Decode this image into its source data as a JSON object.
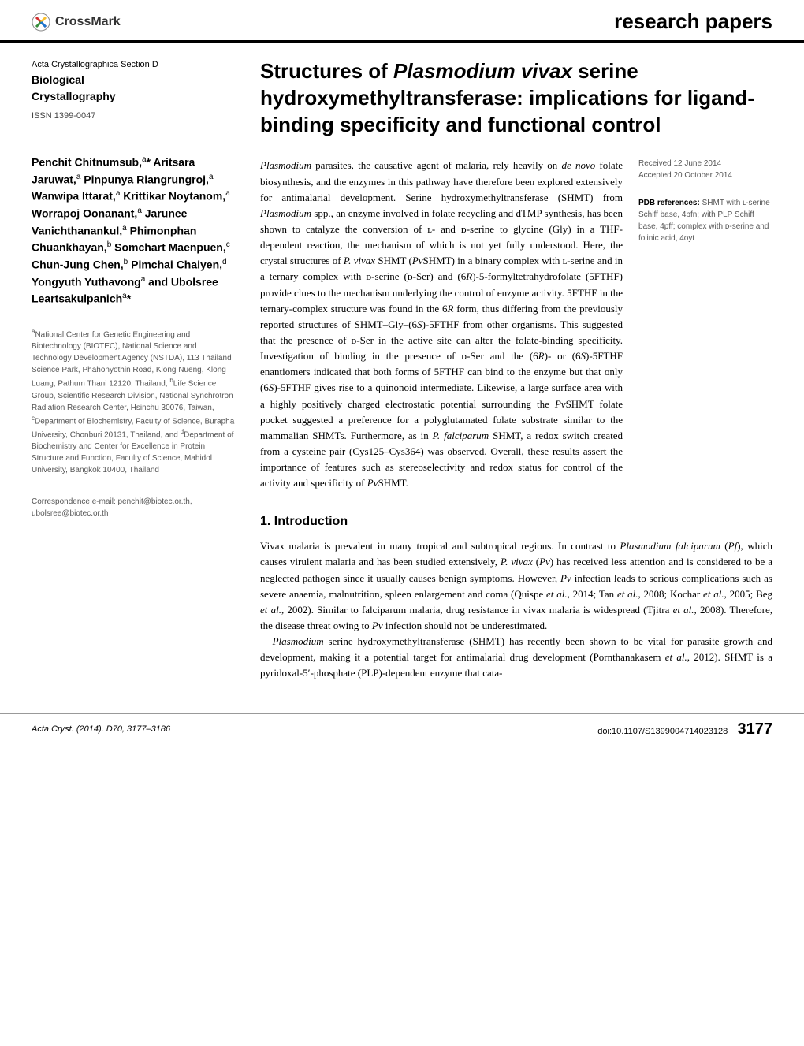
{
  "header": {
    "crossmark": "CrossMark",
    "section_label": "research papers"
  },
  "journal": {
    "line1": "Acta Crystallographica Section D",
    "line2": "Biological",
    "line3": "Crystallography",
    "issn": "ISSN 1399-0047"
  },
  "title": {
    "pre": "Structures of ",
    "italic": "Plasmodium vivax",
    "post": " serine hydroxymethyltransferase: implications for ligand-binding specificity and functional control"
  },
  "authors_html": "Penchit Chitnumsub,<sup>a</sup>* Aritsara Jaruwat,<sup>a</sup> Pinpunya Riangrungroj,<sup>a</sup> Wanwipa Ittarat,<sup>a</sup> Krittikar Noytanom,<sup>a</sup> Worrapoj Oonanant,<sup>a</sup> Jarunee Vanichthanankul,<sup>a</sup> Phimonphan Chuankhayan,<sup>b</sup> Somchart Maenpuen,<sup>c</sup> Chun-Jung Chen,<sup>b</sup> Pimchai Chaiyen,<sup>d</sup> Yongyuth Yuthavong<sup>a</sup> and Ubolsree Leartsakulpanich<sup>a</sup>*",
  "affiliations_html": "<sup>a</sup>National Center for Genetic Engineering and Biotechnology (BIOTEC), National Science and Technology Development Agency (NSTDA), 113 Thailand Science Park, Phahonyothin Road, Klong Nueng, Klong Luang, Pathum Thani 12120, Thailand, <sup>b</sup>Life Science Group, Scientific Research Division, National Synchrotron Radiation Research Center, Hsinchu 30076, Taiwan, <sup>c</sup>Department of Biochemistry, Faculty of Science, Burapha University, Chonburi 20131, Thailand, and <sup>d</sup>Department of Biochemistry and Center for Excellence in Protein Structure and Function, Faculty of Science, Mahidol University, Bangkok 10400, Thailand",
  "correspondence": "Correspondence e-mail: penchit@biotec.or.th, ubolsree@biotec.or.th",
  "dates": {
    "received": "Received 12 June 2014",
    "accepted": "Accepted 20 October 2014"
  },
  "pdb": {
    "header": "PDB references:",
    "text": " SHMT with ʟ-serine Schiff base, 4pfn; with PLP Schiff base, 4pff; complex with ᴅ-serine and folinic acid, 4oyt"
  },
  "abstract_html": "<span class=\"italic\">Plasmodium</span> parasites, the causative agent of malaria, rely heavily on <span class=\"italic\">de novo</span> folate biosynthesis, and the enzymes in this pathway have therefore been explored extensively for antimalarial development. Serine hydroxymethyltransferase (SHMT) from <span class=\"italic\">Plasmodium</span> spp., an enzyme involved in folate recycling and dTMP synthesis, has been shown to catalyze the conversion of ʟ- and ᴅ-serine to glycine (Gly) in a THF-dependent reaction, the mechanism of which is not yet fully understood. Here, the crystal structures of <span class=\"italic\">P. vivax</span> SHMT (<span class=\"italic\">Pv</span>SHMT) in a binary complex with ʟ-serine and in a ternary complex with ᴅ-serine (ᴅ-Ser) and (6<span class=\"italic\">R</span>)-5-formyltetrahydrofolate (5FTHF) provide clues to the mechanism underlying the control of enzyme activity. 5FTHF in the ternary-complex structure was found in the 6<span class=\"italic\">R</span> form, thus differing from the previously reported structures of SHMT–Gly–(6<span class=\"italic\">S</span>)-5FTHF from other organisms. This suggested that the presence of ᴅ-Ser in the active site can alter the folate-binding specificity. Investigation of binding in the presence of ᴅ-Ser and the (6<span class=\"italic\">R</span>)- or (6<span class=\"italic\">S</span>)-5FTHF enantiomers indicated that both forms of 5FTHF can bind to the enzyme but that only (6<span class=\"italic\">S</span>)-5FTHF gives rise to a quinonoid intermediate. Likewise, a large surface area with a highly positively charged electrostatic potential surrounding the <span class=\"italic\">Pv</span>SHMT folate pocket suggested a preference for a polyglutamated folate substrate similar to the mammalian SHMTs. Furthermore, as in <span class=\"italic\">P. falciparum</span> SHMT, a redox switch created from a cysteine pair (Cys125–Cys364) was observed. Overall, these results assert the importance of features such as stereoselectivity and redox status for control of the activity and specificity of <span class=\"italic\">Pv</span>SHMT.",
  "intro": {
    "heading": "1. Introduction",
    "p1_html": "Vivax malaria is prevalent in many tropical and subtropical regions. In contrast to <span class=\"italic\">Plasmodium falciparum</span> (<span class=\"italic\">Pf</span>), which causes virulent malaria and has been studied extensively, <span class=\"italic\">P. vivax</span> (<span class=\"italic\">Pv</span>) has received less attention and is considered to be a neglected pathogen since it usually causes benign symptoms. However, <span class=\"italic\">Pv</span> infection leads to serious complications such as severe anaemia, malnutrition, spleen enlargement and coma (Quispe <span class=\"italic\">et al.</span>, 2014; Tan <span class=\"italic\">et al.</span>, 2008; Kochar <span class=\"italic\">et al.</span>, 2005; Beg <span class=\"italic\">et al.</span>, 2002). Similar to falciparum malaria, drug resistance in vivax malaria is widespread (Tjitra <span class=\"italic\">et al.</span>, 2008). Therefore, the disease threat owing to <span class=\"italic\">Pv</span> infection should not be underestimated.",
    "p2_html": "<span class=\"italic\">Plasmodium</span> serine hydroxymethyltransferase (SHMT) has recently been shown to be vital for parasite growth and development, making it a potential target for antimalarial drug development (Pornthanakasem <span class=\"italic\">et al.</span>, 2012). SHMT is a pyridoxal-5′-phosphate (PLP)-dependent enzyme that cata-"
  },
  "footer": {
    "left": "Acta Cryst. (2014). D70, 3177–3186",
    "doi": "doi:10.1107/S1399004714023128",
    "page": "3177"
  },
  "colors": {
    "crossmark_red": "#d32f2f",
    "crossmark_yellow": "#fbc02d",
    "crossmark_blue": "#1976d2",
    "crossmark_green": "#388e3c"
  }
}
